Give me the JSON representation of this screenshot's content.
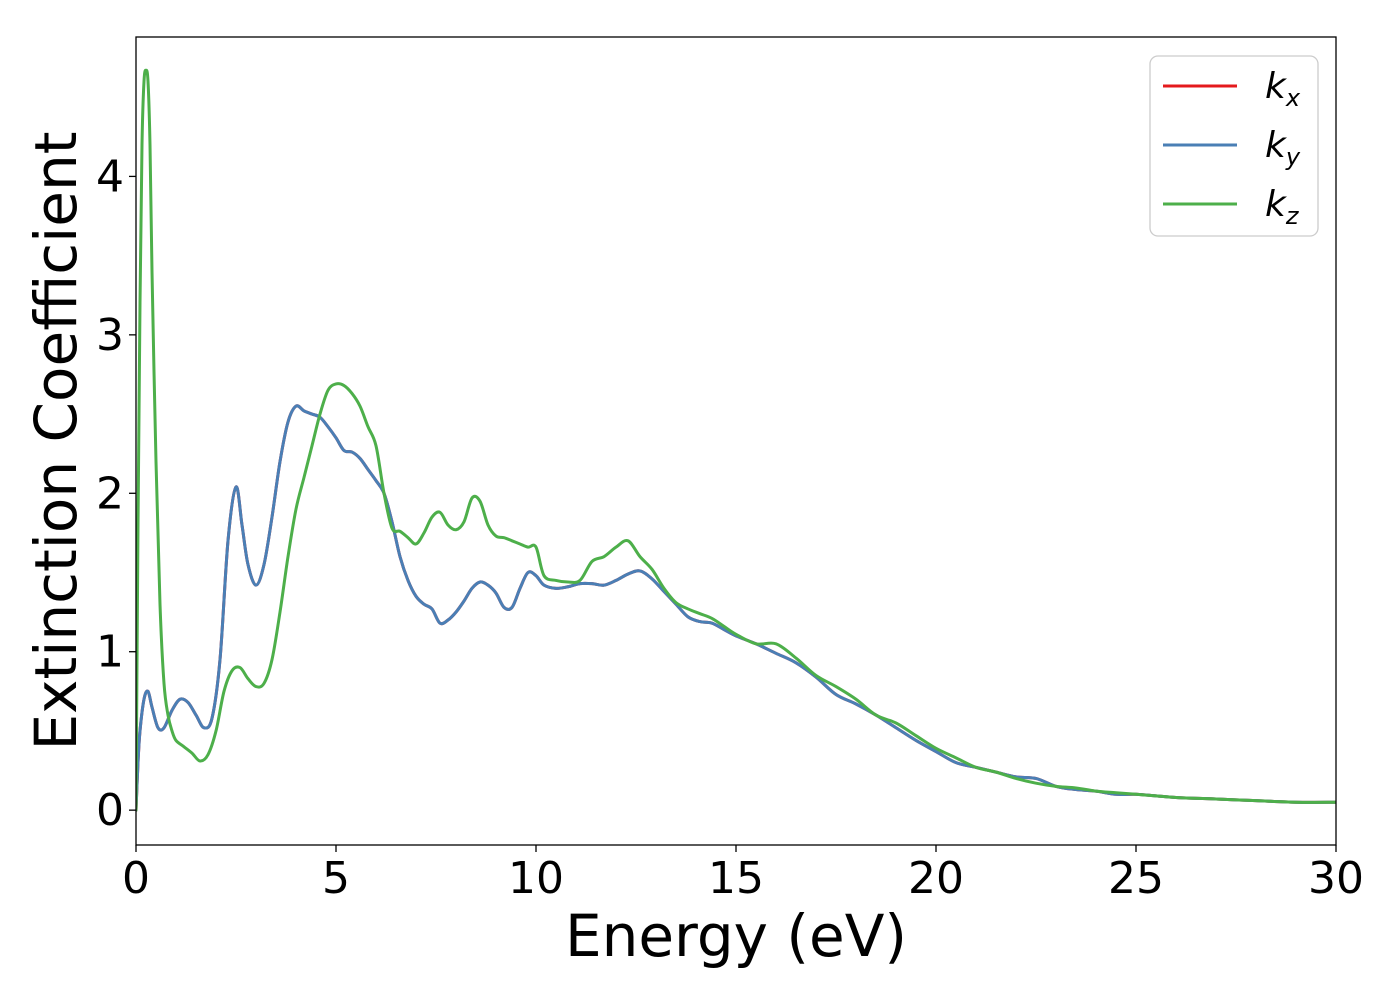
{
  "chart_data": {
    "type": "line",
    "xlabel": "Energy (eV)",
    "ylabel": "Extinction Coefficient",
    "xlim": [
      0,
      30
    ],
    "ylim": [
      -0.22,
      4.88
    ],
    "xticks": [
      "0",
      "5",
      "10",
      "15",
      "20",
      "25",
      "30"
    ],
    "yticks": [
      "0",
      "1",
      "2",
      "3",
      "4"
    ],
    "grid": false,
    "legend_position": "top-right",
    "series": [
      {
        "name": "k_x",
        "label_base": "k",
        "label_sub": "x",
        "color": "#e41a1c",
        "x": [
          0,
          0.05,
          0.1,
          0.2,
          0.3,
          0.4,
          0.55,
          0.7,
          0.9,
          1.1,
          1.3,
          1.5,
          1.7,
          1.9,
          2.1,
          2.3,
          2.5,
          2.65,
          2.8,
          3.0,
          3.2,
          3.4,
          3.6,
          3.8,
          4.0,
          4.2,
          4.4,
          4.6,
          4.8,
          5.0,
          5.2,
          5.4,
          5.6,
          5.8,
          6.0,
          6.2,
          6.4,
          6.6,
          6.8,
          7.0,
          7.2,
          7.4,
          7.6,
          7.8,
          8.0,
          8.2,
          8.4,
          8.6,
          8.8,
          9.0,
          9.2,
          9.4,
          9.6,
          9.8,
          10.0,
          10.2,
          10.5,
          10.8,
          11.1,
          11.4,
          11.7,
          12.0,
          12.3,
          12.6,
          12.9,
          13.2,
          13.5,
          13.8,
          14.1,
          14.4,
          14.7,
          15.0,
          15.5,
          16.0,
          16.5,
          17.0,
          17.5,
          18.0,
          18.5,
          19.0,
          19.5,
          20.0,
          20.5,
          21.0,
          21.5,
          22.0,
          22.5,
          23.0,
          23.5,
          24.0,
          24.5,
          25.0,
          25.5,
          26.0,
          27.0,
          28.0,
          29.0,
          30.0
        ],
        "values": [
          0.0,
          0.3,
          0.5,
          0.7,
          0.75,
          0.65,
          0.52,
          0.52,
          0.63,
          0.7,
          0.68,
          0.6,
          0.52,
          0.58,
          0.95,
          1.7,
          2.04,
          1.8,
          1.55,
          1.42,
          1.55,
          1.85,
          2.2,
          2.45,
          2.55,
          2.52,
          2.5,
          2.48,
          2.42,
          2.35,
          2.27,
          2.26,
          2.22,
          2.15,
          2.08,
          2.0,
          1.82,
          1.6,
          1.45,
          1.35,
          1.3,
          1.27,
          1.18,
          1.2,
          1.25,
          1.32,
          1.4,
          1.44,
          1.42,
          1.37,
          1.28,
          1.28,
          1.4,
          1.5,
          1.48,
          1.42,
          1.4,
          1.41,
          1.43,
          1.43,
          1.42,
          1.45,
          1.49,
          1.51,
          1.46,
          1.38,
          1.3,
          1.22,
          1.19,
          1.18,
          1.14,
          1.1,
          1.05,
          0.99,
          0.93,
          0.84,
          0.73,
          0.67,
          0.6,
          0.52,
          0.44,
          0.37,
          0.3,
          0.27,
          0.24,
          0.21,
          0.2,
          0.15,
          0.13,
          0.12,
          0.1,
          0.1,
          0.09,
          0.08,
          0.07,
          0.06,
          0.05,
          0.05
        ]
      },
      {
        "name": "k_y",
        "label_base": "k",
        "label_sub": "y",
        "color": "#4a7fb5",
        "x": [
          0,
          0.05,
          0.1,
          0.2,
          0.3,
          0.4,
          0.55,
          0.7,
          0.9,
          1.1,
          1.3,
          1.5,
          1.7,
          1.9,
          2.1,
          2.3,
          2.5,
          2.65,
          2.8,
          3.0,
          3.2,
          3.4,
          3.6,
          3.8,
          4.0,
          4.2,
          4.4,
          4.6,
          4.8,
          5.0,
          5.2,
          5.4,
          5.6,
          5.8,
          6.0,
          6.2,
          6.4,
          6.6,
          6.8,
          7.0,
          7.2,
          7.4,
          7.6,
          7.8,
          8.0,
          8.2,
          8.4,
          8.6,
          8.8,
          9.0,
          9.2,
          9.4,
          9.6,
          9.8,
          10.0,
          10.2,
          10.5,
          10.8,
          11.1,
          11.4,
          11.7,
          12.0,
          12.3,
          12.6,
          12.9,
          13.2,
          13.5,
          13.8,
          14.1,
          14.4,
          14.7,
          15.0,
          15.5,
          16.0,
          16.5,
          17.0,
          17.5,
          18.0,
          18.5,
          19.0,
          19.5,
          20.0,
          20.5,
          21.0,
          21.5,
          22.0,
          22.5,
          23.0,
          23.5,
          24.0,
          24.5,
          25.0,
          25.5,
          26.0,
          27.0,
          28.0,
          29.0,
          30.0
        ],
        "values": [
          0.0,
          0.3,
          0.5,
          0.7,
          0.75,
          0.65,
          0.52,
          0.52,
          0.63,
          0.7,
          0.68,
          0.6,
          0.52,
          0.58,
          0.95,
          1.7,
          2.04,
          1.8,
          1.55,
          1.42,
          1.55,
          1.85,
          2.2,
          2.45,
          2.55,
          2.52,
          2.5,
          2.48,
          2.42,
          2.35,
          2.27,
          2.26,
          2.22,
          2.15,
          2.08,
          2.0,
          1.82,
          1.6,
          1.45,
          1.35,
          1.3,
          1.27,
          1.18,
          1.2,
          1.25,
          1.32,
          1.4,
          1.44,
          1.42,
          1.37,
          1.28,
          1.28,
          1.4,
          1.5,
          1.48,
          1.42,
          1.4,
          1.41,
          1.43,
          1.43,
          1.42,
          1.45,
          1.49,
          1.51,
          1.46,
          1.38,
          1.3,
          1.22,
          1.19,
          1.18,
          1.14,
          1.1,
          1.05,
          0.99,
          0.93,
          0.84,
          0.73,
          0.67,
          0.6,
          0.52,
          0.44,
          0.37,
          0.3,
          0.27,
          0.24,
          0.21,
          0.2,
          0.15,
          0.13,
          0.12,
          0.1,
          0.1,
          0.09,
          0.08,
          0.07,
          0.06,
          0.05,
          0.05
        ]
      },
      {
        "name": "k_z",
        "label_base": "k",
        "label_sub": "z",
        "color": "#4daf4a",
        "x": [
          0,
          0.05,
          0.1,
          0.15,
          0.2,
          0.25,
          0.3,
          0.35,
          0.4,
          0.5,
          0.6,
          0.7,
          0.8,
          0.9,
          1.0,
          1.2,
          1.4,
          1.6,
          1.8,
          2.0,
          2.2,
          2.4,
          2.6,
          2.8,
          3.0,
          3.2,
          3.4,
          3.6,
          3.8,
          4.0,
          4.2,
          4.4,
          4.6,
          4.8,
          5.0,
          5.2,
          5.4,
          5.6,
          5.8,
          6.0,
          6.2,
          6.4,
          6.6,
          6.8,
          7.0,
          7.2,
          7.4,
          7.6,
          7.8,
          8.0,
          8.2,
          8.4,
          8.6,
          8.8,
          9.0,
          9.2,
          9.4,
          9.6,
          9.8,
          10.0,
          10.2,
          10.5,
          10.8,
          11.1,
          11.4,
          11.7,
          12.0,
          12.3,
          12.6,
          12.9,
          13.2,
          13.5,
          13.8,
          14.1,
          14.4,
          14.7,
          15.0,
          15.5,
          16.0,
          16.5,
          17.0,
          17.5,
          18.0,
          18.5,
          19.0,
          19.5,
          20.0,
          20.5,
          21.0,
          21.5,
          22.0,
          22.5,
          23.0,
          23.5,
          24.0,
          24.5,
          25.0,
          25.5,
          26.0,
          27.0,
          28.0,
          29.0,
          30.0
        ],
        "values": [
          0.0,
          1.8,
          3.2,
          4.2,
          4.6,
          4.67,
          4.6,
          4.2,
          3.4,
          2.2,
          1.3,
          0.8,
          0.6,
          0.5,
          0.44,
          0.4,
          0.36,
          0.31,
          0.35,
          0.5,
          0.75,
          0.88,
          0.9,
          0.83,
          0.78,
          0.8,
          0.95,
          1.25,
          1.6,
          1.9,
          2.1,
          2.3,
          2.5,
          2.65,
          2.69,
          2.68,
          2.63,
          2.55,
          2.42,
          2.3,
          2.0,
          1.78,
          1.76,
          1.72,
          1.68,
          1.75,
          1.85,
          1.88,
          1.8,
          1.77,
          1.82,
          1.97,
          1.95,
          1.8,
          1.73,
          1.72,
          1.7,
          1.68,
          1.66,
          1.66,
          1.48,
          1.45,
          1.44,
          1.45,
          1.57,
          1.6,
          1.66,
          1.7,
          1.6,
          1.52,
          1.4,
          1.31,
          1.27,
          1.24,
          1.21,
          1.16,
          1.11,
          1.05,
          1.05,
          0.96,
          0.85,
          0.78,
          0.7,
          0.6,
          0.55,
          0.47,
          0.39,
          0.33,
          0.27,
          0.24,
          0.2,
          0.17,
          0.15,
          0.14,
          0.12,
          0.11,
          0.1,
          0.09,
          0.08,
          0.07,
          0.06,
          0.05,
          0.05
        ]
      }
    ]
  }
}
